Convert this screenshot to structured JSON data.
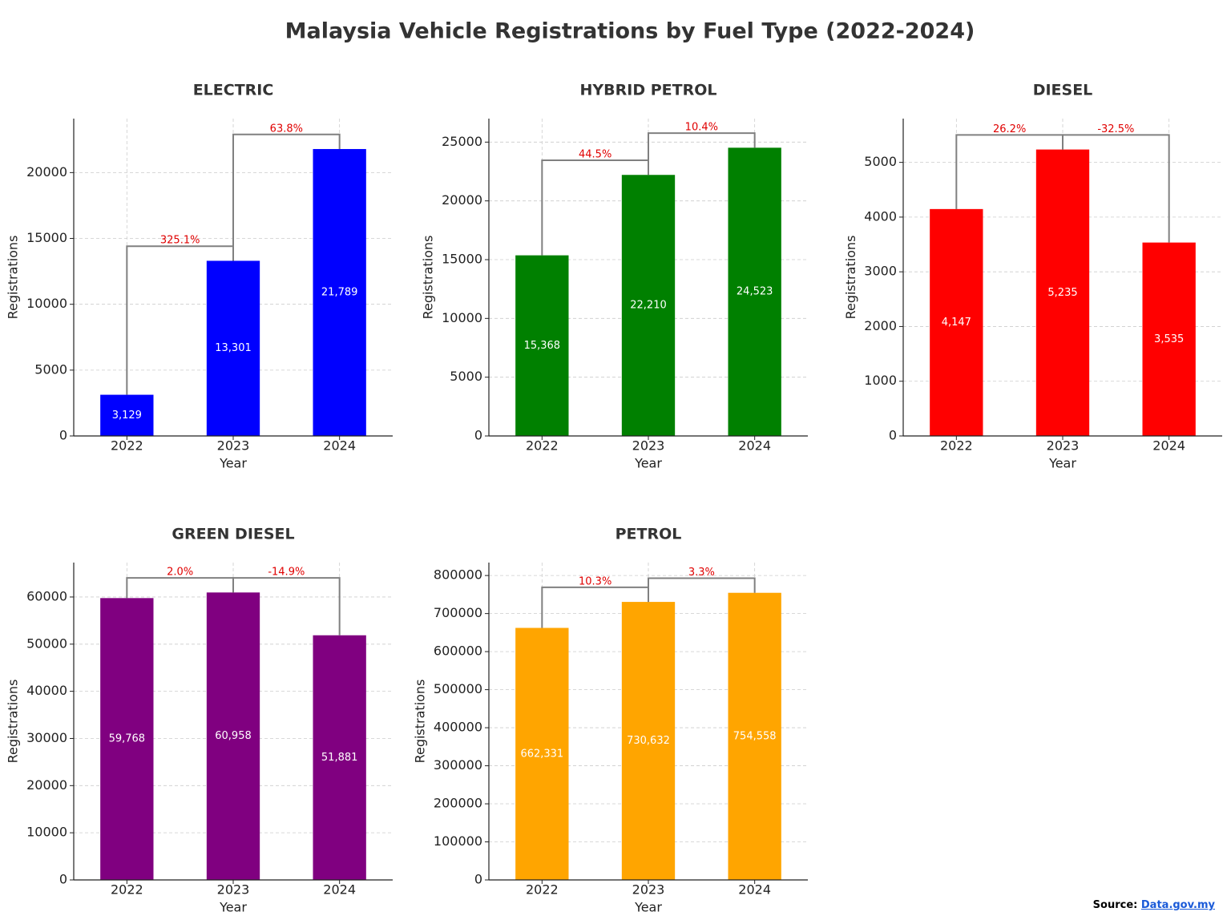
{
  "title": "Malaysia Vehicle Registrations by Fuel Type (2022-2024)",
  "source": {
    "label": "Source:",
    "link": "Data.gov.my"
  },
  "chart_data": [
    {
      "type": "bar",
      "title": "ELECTRIC",
      "xlabel": "Year",
      "ylabel": "Registrations",
      "categories": [
        "2022",
        "2023",
        "2024"
      ],
      "values": [
        3129,
        13301,
        21789
      ],
      "value_labels": [
        "3,129",
        "13,301",
        "21,789"
      ],
      "color": "#0000ff",
      "ylim": [
        0,
        24100
      ],
      "yticks": [
        0,
        5000,
        10000,
        15000,
        20000
      ],
      "grid": true,
      "changes": [
        "325.1%",
        "63.8%"
      ]
    },
    {
      "type": "bar",
      "title": "HYBRID PETROL",
      "xlabel": "Year",
      "ylabel": "Registrations",
      "categories": [
        "2022",
        "2023",
        "2024"
      ],
      "values": [
        15368,
        22210,
        24523
      ],
      "value_labels": [
        "15,368",
        "22,210",
        "24,523"
      ],
      "color": "#008000",
      "ylim": [
        0,
        27000
      ],
      "yticks": [
        0,
        5000,
        10000,
        15000,
        20000,
        25000
      ],
      "grid": true,
      "changes": [
        "44.5%",
        "10.4%"
      ]
    },
    {
      "type": "bar",
      "title": "DIESEL",
      "xlabel": "Year",
      "ylabel": "Registrations",
      "categories": [
        "2022",
        "2023",
        "2024"
      ],
      "values": [
        4147,
        5235,
        3535
      ],
      "value_labels": [
        "4,147",
        "5,235",
        "3,535"
      ],
      "color": "#ff0000",
      "ylim": [
        0,
        5800
      ],
      "yticks": [
        0,
        1000,
        2000,
        3000,
        4000,
        5000
      ],
      "grid": true,
      "changes": [
        "26.2%",
        "-32.5%"
      ]
    },
    {
      "type": "bar",
      "title": "GREEN DIESEL",
      "xlabel": "Year",
      "ylabel": "Registrations",
      "categories": [
        "2022",
        "2023",
        "2024"
      ],
      "values": [
        59768,
        60958,
        51881
      ],
      "value_labels": [
        "59,768",
        "60,958",
        "51,881"
      ],
      "color": "#800080",
      "ylim": [
        0,
        67300
      ],
      "yticks": [
        0,
        10000,
        20000,
        30000,
        40000,
        50000,
        60000
      ],
      "grid": true,
      "changes": [
        "2.0%",
        "-14.9%"
      ]
    },
    {
      "type": "bar",
      "title": "PETROL",
      "xlabel": "Year",
      "ylabel": "Registrations",
      "categories": [
        "2022",
        "2023",
        "2024"
      ],
      "values": [
        662331,
        730632,
        754558
      ],
      "value_labels": [
        "662,331",
        "730,632",
        "754,558"
      ],
      "color": "#ffa500",
      "ylim": [
        0,
        834000
      ],
      "yticks": [
        0,
        100000,
        200000,
        300000,
        400000,
        500000,
        600000,
        700000,
        800000
      ],
      "grid": true,
      "changes": [
        "10.3%",
        "3.3%"
      ]
    }
  ]
}
